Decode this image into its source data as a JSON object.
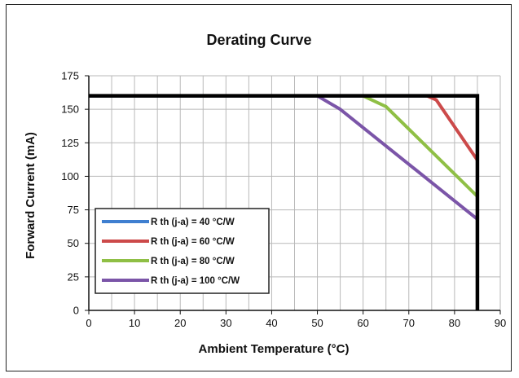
{
  "chart_data": {
    "type": "line",
    "title": "Derating Curve",
    "xlabel": "Ambient Temperature (°C)",
    "ylabel": "Forward Current (mA)",
    "xlim": [
      0,
      90
    ],
    "ylim": [
      0,
      175
    ],
    "xticks": [
      0,
      10,
      20,
      30,
      40,
      50,
      60,
      70,
      80,
      90
    ],
    "yticks": [
      0,
      25,
      50,
      75,
      100,
      125,
      150,
      175
    ],
    "grid": true,
    "legend_position": "bottom-left",
    "limit_line": {
      "points": [
        [
          0,
          160
        ],
        [
          85,
          160
        ],
        [
          85,
          0
        ]
      ],
      "color": "#000000"
    },
    "series": [
      {
        "name": "R th (j-a) =  40 °C/W",
        "color": "#3f7fd0",
        "points": [
          [
            0,
            160
          ],
          [
            85,
            160
          ]
        ]
      },
      {
        "name": "R th (j-a) =  60 °C/W",
        "color": "#cc4a4a",
        "points": [
          [
            74,
            160
          ],
          [
            76,
            157
          ],
          [
            85,
            112
          ]
        ]
      },
      {
        "name": "R th (j-a) =  80 °C/W",
        "color": "#8fbf45",
        "points": [
          [
            60,
            160
          ],
          [
            65,
            152
          ],
          [
            85,
            85
          ]
        ]
      },
      {
        "name": "R th (j-a) = 100 °C/W",
        "color": "#7b55a8",
        "points": [
          [
            50,
            160
          ],
          [
            55,
            150
          ],
          [
            85,
            68
          ]
        ]
      }
    ]
  }
}
